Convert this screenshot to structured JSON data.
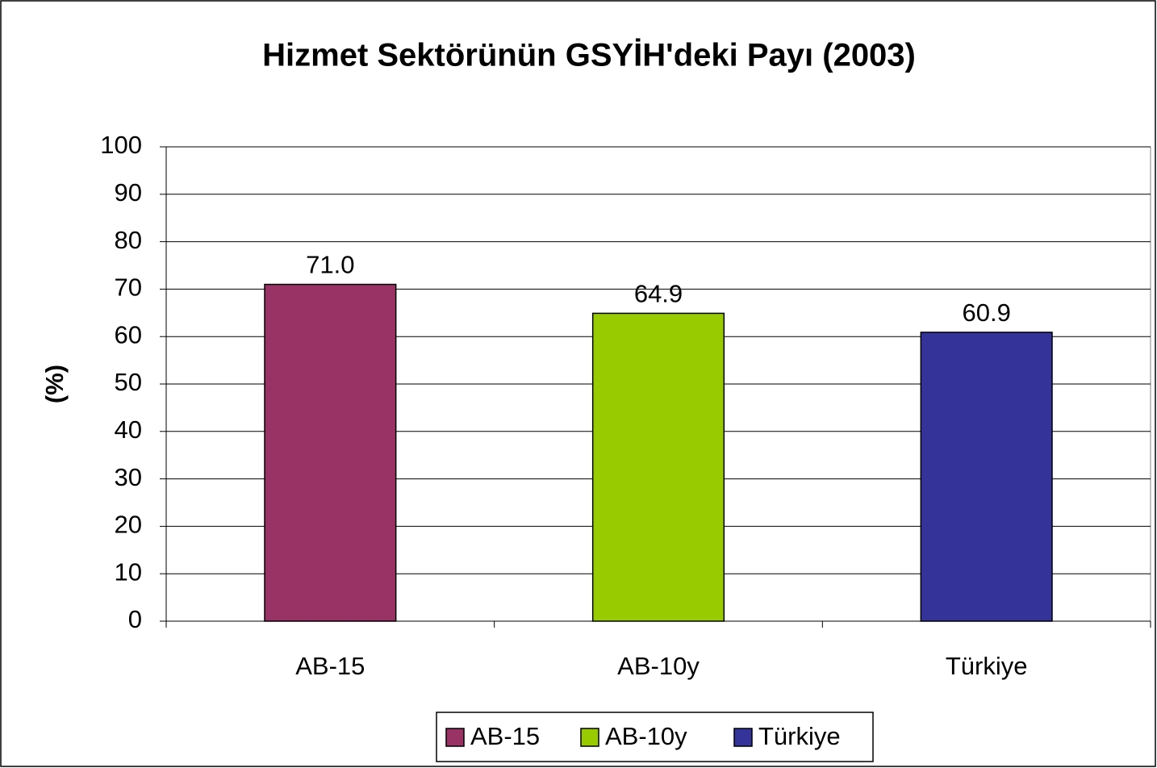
{
  "chart_data": {
    "type": "bar",
    "title": "Hizmet Sektörünün GSYİH'deki Payı (2003)",
    "y_label": "(%)",
    "categories": [
      "AB-15",
      "AB-10y",
      "Türkiye"
    ],
    "values": [
      71.0,
      64.9,
      60.9
    ],
    "value_labels": [
      "71.0",
      "64.9",
      "60.9"
    ],
    "colors": [
      "#993366",
      "#99cc00",
      "#333399"
    ],
    "ylim": [
      0,
      100
    ],
    "yticks": [
      0,
      10,
      20,
      30,
      40,
      50,
      60,
      70,
      80,
      90,
      100
    ],
    "grid": true,
    "legend": "bottom"
  }
}
